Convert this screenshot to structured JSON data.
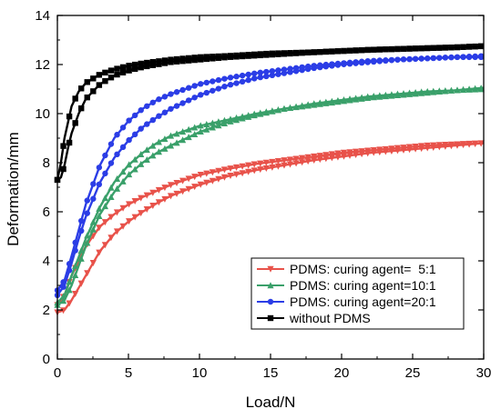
{
  "chart_data": {
    "type": "line",
    "xlabel": "Load/N",
    "ylabel": "Deformation/mm",
    "xlim": [
      0,
      30
    ],
    "ylim": [
      0,
      14
    ],
    "x_ticks": [
      0,
      5,
      10,
      15,
      20,
      25,
      30
    ],
    "y_ticks": [
      0,
      2,
      4,
      6,
      8,
      10,
      12,
      14
    ],
    "grid": false,
    "legend_position": "bottom-right",
    "series": [
      {
        "name": "PDMS: curing agent=  5:1",
        "color": "#e8524a",
        "marker": "triangle-down",
        "loading": {
          "x": [
            0,
            0.5,
            1,
            1.5,
            2,
            3,
            4,
            5,
            6,
            7,
            8,
            10,
            12,
            14,
            16,
            18,
            20,
            22,
            24,
            26,
            28,
            30
          ],
          "y": [
            1.9,
            2.0,
            2.4,
            2.9,
            3.4,
            4.4,
            5.1,
            5.6,
            6.0,
            6.35,
            6.65,
            7.1,
            7.45,
            7.7,
            7.9,
            8.1,
            8.25,
            8.4,
            8.5,
            8.6,
            8.7,
            8.8
          ]
        },
        "unloading": {
          "x": [
            30,
            28,
            26,
            24,
            22,
            20,
            18,
            16,
            14,
            12,
            10,
            8,
            6,
            5,
            4,
            3,
            2,
            1,
            0.5,
            0
          ],
          "y": [
            8.8,
            8.75,
            8.7,
            8.6,
            8.5,
            8.4,
            8.25,
            8.1,
            7.95,
            7.75,
            7.5,
            7.1,
            6.6,
            6.3,
            5.9,
            5.4,
            4.6,
            3.4,
            2.6,
            2.2
          ]
        }
      },
      {
        "name": "PDMS: curing agent=10:1",
        "color": "#3aa06a",
        "marker": "triangle-up",
        "loading": {
          "x": [
            0,
            0.5,
            1,
            1.5,
            2,
            3,
            4,
            5,
            6,
            7,
            8,
            10,
            12,
            14,
            16,
            18,
            20,
            22,
            24,
            26,
            28,
            30
          ],
          "y": [
            2.2,
            2.4,
            3.0,
            3.8,
            4.6,
            5.9,
            6.8,
            7.5,
            8.0,
            8.4,
            8.7,
            9.25,
            9.65,
            9.95,
            10.2,
            10.4,
            10.55,
            10.7,
            10.8,
            10.9,
            10.95,
            11.05
          ]
        },
        "unloading": {
          "x": [
            30,
            28,
            26,
            24,
            22,
            20,
            18,
            16,
            14,
            12,
            10,
            8,
            7,
            6,
            5,
            4,
            3,
            2,
            1,
            0.5,
            0
          ],
          "y": [
            11.0,
            10.95,
            10.85,
            10.75,
            10.65,
            10.5,
            10.35,
            10.2,
            10.0,
            9.75,
            9.5,
            9.1,
            8.8,
            8.4,
            7.9,
            7.2,
            6.2,
            4.9,
            3.4,
            2.6,
            2.3
          ]
        }
      },
      {
        "name": "PDMS: curing agent=20:1",
        "color": "#2b3de6",
        "marker": "circle",
        "loading": {
          "x": [
            0,
            0.5,
            1,
            1.5,
            2,
            3,
            4,
            5,
            6,
            7,
            8,
            10,
            12,
            14,
            16,
            18,
            20,
            22,
            24,
            26,
            28,
            30
          ],
          "y": [
            2.6,
            3.0,
            3.9,
            4.9,
            5.8,
            7.2,
            8.2,
            8.9,
            9.45,
            9.85,
            10.2,
            10.75,
            11.15,
            11.45,
            11.65,
            11.85,
            12.0,
            12.1,
            12.2,
            12.25,
            12.3,
            12.35
          ]
        },
        "unloading": {
          "x": [
            30,
            28,
            26,
            24,
            22,
            20,
            18,
            16,
            14,
            12,
            10,
            8,
            7,
            6,
            5,
            4,
            3,
            2,
            1,
            0.5,
            0
          ],
          "y": [
            12.3,
            12.3,
            12.25,
            12.2,
            12.15,
            12.05,
            11.95,
            11.8,
            11.65,
            11.45,
            11.2,
            10.8,
            10.55,
            10.2,
            9.7,
            9.0,
            7.9,
            6.3,
            4.2,
            3.2,
            2.8
          ]
        }
      },
      {
        "name": "without PDMS",
        "color": "#000000",
        "marker": "square",
        "loading": {
          "x": [
            0,
            0.25,
            0.5,
            0.75,
            1,
            1.5,
            2,
            3,
            4,
            5,
            6,
            8,
            10,
            12,
            15,
            18,
            20,
            22,
            25,
            28,
            30
          ],
          "y": [
            7.3,
            7.4,
            7.9,
            8.6,
            9.2,
            10.0,
            10.6,
            11.2,
            11.55,
            11.75,
            11.9,
            12.1,
            12.2,
            12.3,
            12.4,
            12.5,
            12.55,
            12.6,
            12.65,
            12.7,
            12.75
          ]
        },
        "unloading": {
          "x": [
            30,
            28,
            25,
            22,
            20,
            18,
            15,
            12,
            10,
            8,
            6,
            5,
            4,
            3,
            2,
            1.5,
            1,
            0.5,
            0.25,
            0
          ],
          "y": [
            12.75,
            12.7,
            12.65,
            12.6,
            12.55,
            12.5,
            12.45,
            12.35,
            12.3,
            12.2,
            12.05,
            11.95,
            11.8,
            11.6,
            11.25,
            10.9,
            10.3,
            9.0,
            8.0,
            7.3
          ]
        }
      }
    ]
  }
}
